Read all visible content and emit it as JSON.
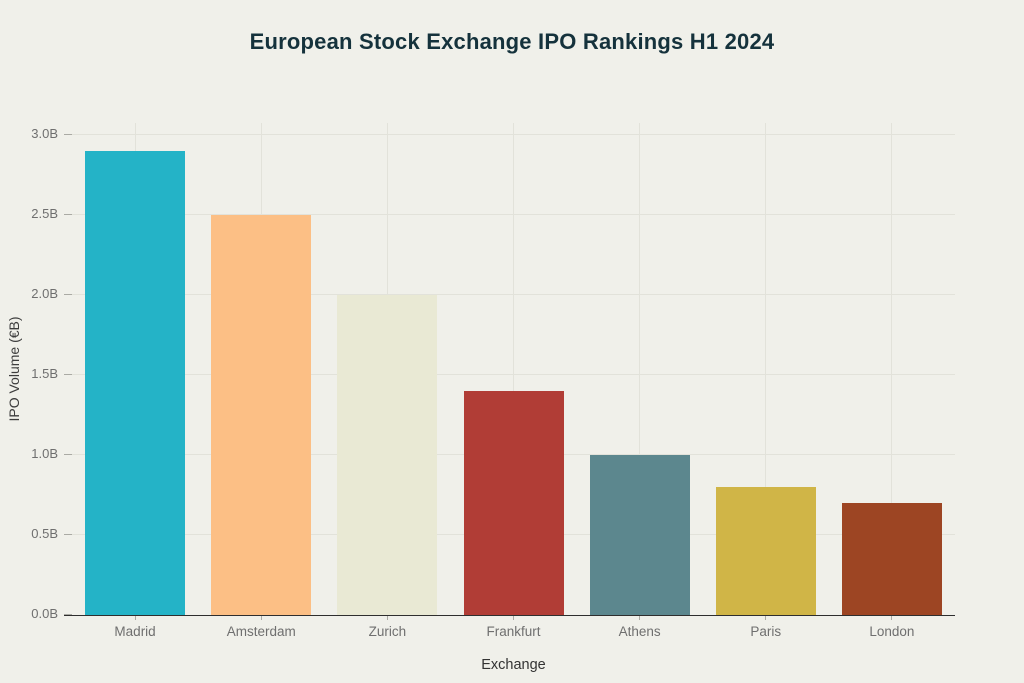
{
  "chart_data": {
    "type": "bar",
    "title": "European Stock Exchange IPO Rankings H1 2024",
    "xlabel": "Exchange",
    "ylabel": "IPO Volume (€B)",
    "categories": [
      "Madrid",
      "Amsterdam",
      "Zurich",
      "Frankfurt",
      "Athens",
      "Paris",
      "London"
    ],
    "values": [
      2.9,
      2.5,
      2.0,
      1.4,
      1.0,
      0.8,
      0.7
    ],
    "bar_colors": [
      "#24b3c7",
      "#fcbf85",
      "#e9e9d4",
      "#b13d36",
      "#5c878e",
      "#d0b547",
      "#9d4523"
    ],
    "ylim": [
      0,
      3.0
    ],
    "yticks": {
      "values": [
        0,
        0.5,
        1.0,
        1.5,
        2.0,
        2.5,
        3.0
      ],
      "labels": [
        "0.0B",
        "0.5B",
        "1.0B",
        "1.5B",
        "2.0B",
        "2.5B",
        "3.0B"
      ]
    },
    "grid": true,
    "legend": "none"
  },
  "colors": {
    "background": "#f0f0ea",
    "grid": "#e2e2da",
    "axis_line": "#2e2e2e",
    "tick_text": "#6f6f6f",
    "title_text": "#15323c",
    "axis_title_text": "#3d3d3d"
  }
}
